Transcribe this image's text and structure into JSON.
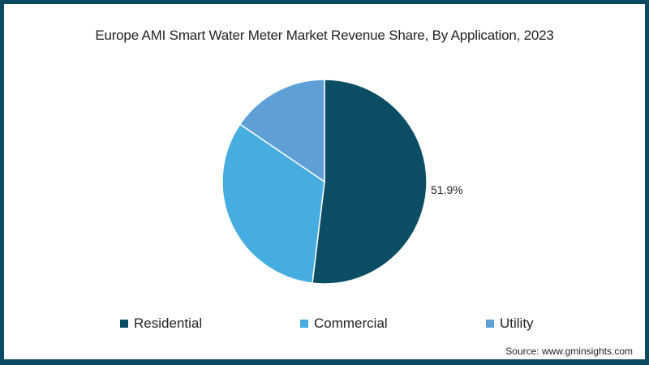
{
  "title": "Europe AMI Smart Water Meter Market Revenue Share, By Application, 2023",
  "source": "Source: www.gminsights.com",
  "colors": {
    "residential": "#0b4d65",
    "commercial": "#46ade0",
    "utility": "#5d9fd6",
    "border": "#0b4a62"
  },
  "legend": [
    {
      "label": "Residential",
      "color": "#0b4d65"
    },
    {
      "label": "Commercial",
      "color": "#46ade0"
    },
    {
      "label": "Utility",
      "color": "#5d9fd6"
    }
  ],
  "data_label": "51.9%",
  "chart_data": {
    "type": "pie",
    "title": "Europe AMI Smart Water Meter Market Revenue Share, By Application, 2023",
    "categories": [
      "Residential",
      "Commercial",
      "Utility"
    ],
    "values": [
      51.9,
      32.6,
      15.5
    ],
    "labeled_values": {
      "Residential": "51.9%"
    },
    "legend_position": "bottom",
    "start_angle": "12 o'clock, clockwise"
  }
}
